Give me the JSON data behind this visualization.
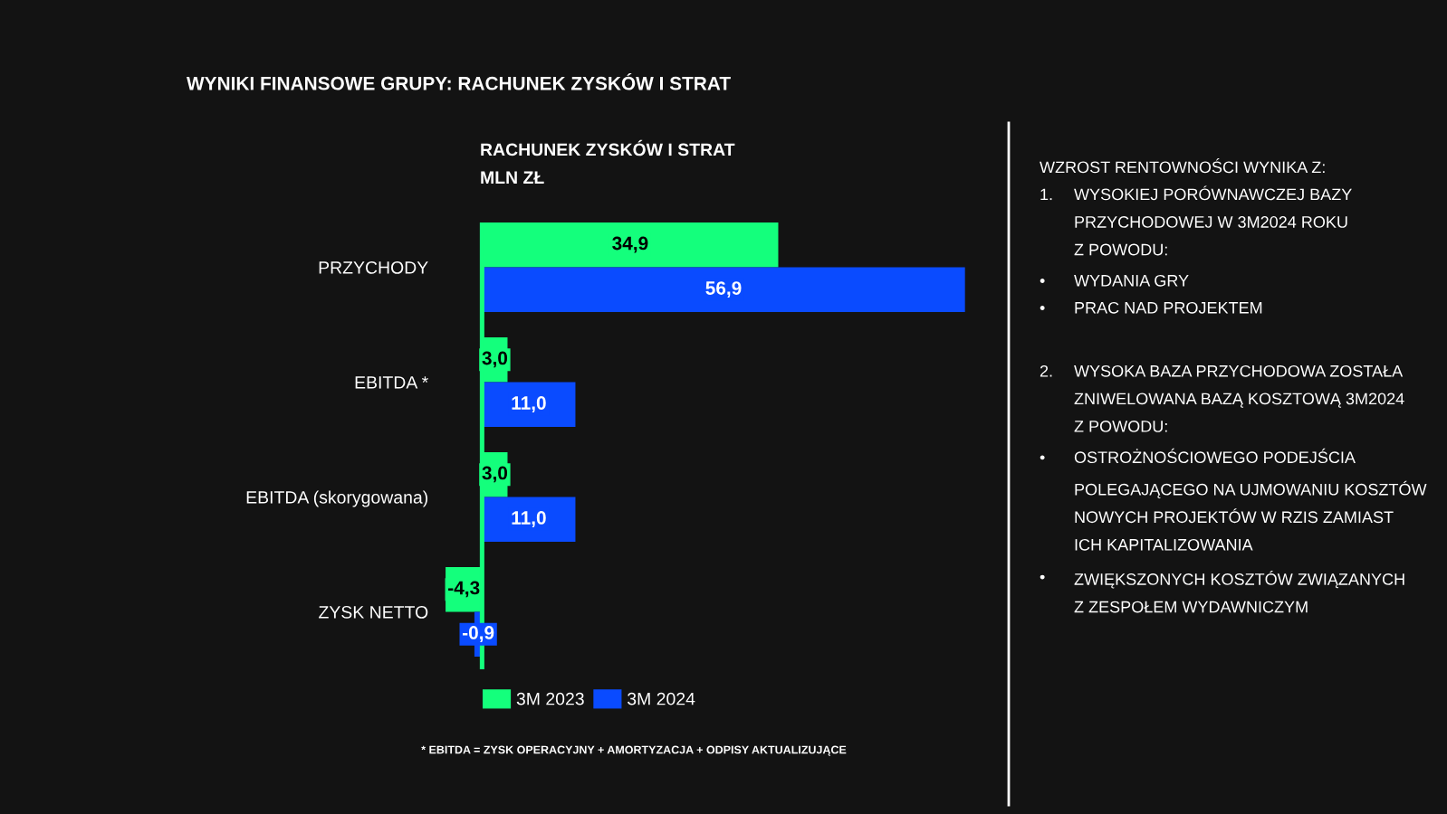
{
  "chart_data": {
    "type": "bar",
    "orientation": "horizontal",
    "title": "WYNIKI FINANSOWE GRUPY: RACHUNEK ZYSKÓW I STRAT",
    "subtitle": "RACHUNEK ZYSKÓW I STRAT\nMLN ZŁ",
    "categories": [
      "PRZYCHODY",
      "EBITDA *",
      "EBITDA (skorygowana)",
      "ZYSK NETTO"
    ],
    "series": [
      {
        "name": "3M 2023",
        "color": "#14ff7c",
        "values": [
          34.9,
          3.0,
          3.0,
          -4.3
        ],
        "value_labels": [
          "34,9",
          "3,0",
          "3,0",
          "-4,3"
        ]
      },
      {
        "name": "3M 2024",
        "color": "#0a4bff",
        "values": [
          56.9,
          11.0,
          11.0,
          -0.9
        ],
        "value_labels": [
          "56,9",
          "11,0",
          "11,0",
          "-0,9"
        ]
      }
    ],
    "ref_lines": [
      {
        "axis": "x",
        "value": 0,
        "color": "#14ff7c"
      }
    ],
    "legend": "bottom",
    "annotations": [
      "WZROST RENTOWNOŚCI WYNIKA Z:",
      "1. WYSOKIEJ PORÓWNAWCZEJ BAZY\nPRZYCHODOWEJ W 3M2024 ROKU\nZ POWODU:",
      "• WYDANIA GRY",
      "• PRAC NAD PROJEKTEM",
      "2. WYSOKA BAZA PRZYCHODOWA ZOSTAŁA\nZNIWELOWANA BAZĄ KOSZTOWĄ 3M2024\nZ POWODU:",
      "• OSTROŻNOŚCIOWEGO PODEJŚCIA\nPOLEGAJĄCEGO NA UJMOWANIU KOSZTÓW\nNOWYCH PROJEKTÓW W RZIS ZAMIAST\nICH KAPITALIZOWANIA",
      "• ZWIĘKSZONYCH KOSZTÓW ZWIĄZANYCH\nZ ZESPOŁEM WYDAWNICZYM",
      "* EBITDA = ZYSK OPERACYJNY + AMORTYZACJA + ODPISY AKTUALIZUJĄCE"
    ]
  }
}
